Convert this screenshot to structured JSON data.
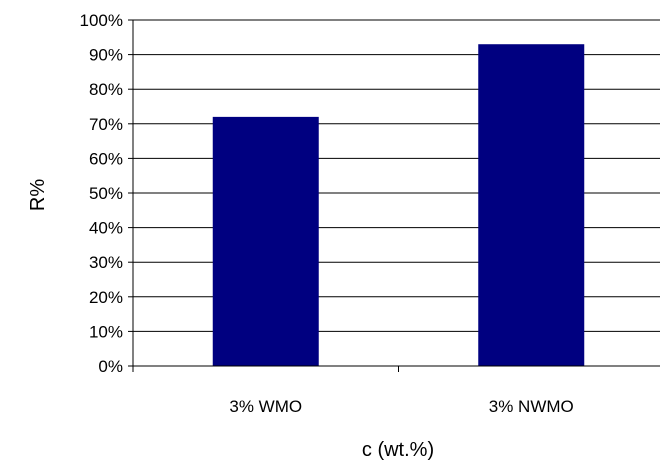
{
  "chart_data": {
    "type": "bar",
    "title": "",
    "xlabel": "c (wt.%)",
    "ylabel": "R%",
    "categories": [
      "3% WMO",
      "3% NWMO"
    ],
    "values": [
      72,
      93
    ],
    "ylim": [
      0,
      100
    ],
    "yticks": [
      0,
      10,
      20,
      30,
      40,
      50,
      60,
      70,
      80,
      90,
      100
    ],
    "ytick_labels": [
      "0%",
      "10%",
      "20%",
      "30%",
      "40%",
      "50%",
      "60%",
      "70%",
      "80%",
      "90%",
      "100%"
    ],
    "grid": true,
    "legend": "none",
    "bar_color": "#000080"
  }
}
